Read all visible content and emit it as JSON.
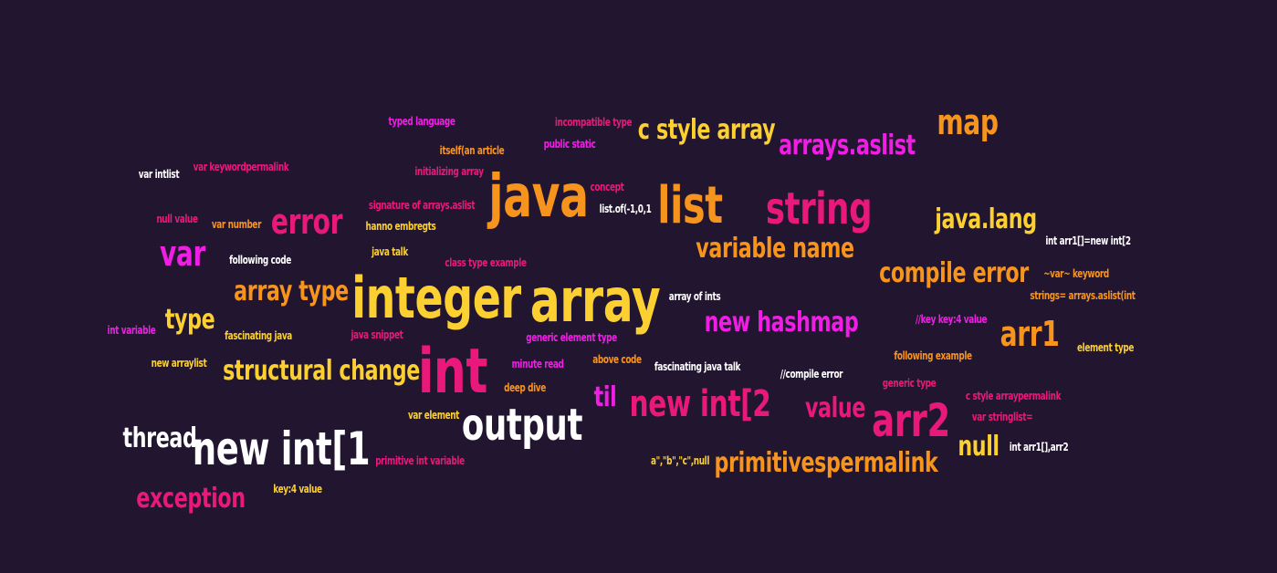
{
  "palette": {
    "background": "#221530",
    "orange": "#f7941d",
    "yellow": "#fbd030",
    "pink": "#e8197a",
    "magenta": "#f01ee4",
    "white": "#ffffff"
  },
  "words": [
    {
      "text": "java",
      "color": "orange"
    },
    {
      "text": "array",
      "color": "yellow"
    },
    {
      "text": "integer",
      "color": "yellow"
    },
    {
      "text": "int",
      "color": "pink"
    },
    {
      "text": "list",
      "color": "orange"
    },
    {
      "text": "string",
      "color": "pink"
    },
    {
      "text": "new int[1",
      "color": "white"
    },
    {
      "text": "output",
      "color": "white"
    },
    {
      "text": "new int[2",
      "color": "pink"
    },
    {
      "text": "arr2",
      "color": "pink"
    },
    {
      "text": "map",
      "color": "orange"
    },
    {
      "text": "var",
      "color": "magenta"
    },
    {
      "text": "error",
      "color": "pink"
    },
    {
      "text": "arr1",
      "color": "orange"
    },
    {
      "text": "structural change",
      "color": "yellow"
    },
    {
      "text": "array type",
      "color": "orange"
    },
    {
      "text": "type",
      "color": "yellow"
    },
    {
      "text": "thread",
      "color": "white"
    },
    {
      "text": "exception",
      "color": "pink"
    },
    {
      "text": "c style array",
      "color": "yellow"
    },
    {
      "text": "arrays.aslist",
      "color": "magenta"
    },
    {
      "text": "variable name",
      "color": "orange"
    },
    {
      "text": "java.lang",
      "color": "yellow"
    },
    {
      "text": "compile error",
      "color": "orange"
    },
    {
      "text": "new hashmap",
      "color": "magenta"
    },
    {
      "text": "value",
      "color": "pink"
    },
    {
      "text": "til",
      "color": "magenta"
    },
    {
      "text": "null",
      "color": "yellow"
    },
    {
      "text": "primitivespermalink",
      "color": "orange"
    },
    {
      "text": "typed language",
      "color": "magenta"
    },
    {
      "text": "incompatible type",
      "color": "pink"
    },
    {
      "text": "itself(an article",
      "color": "orange"
    },
    {
      "text": "public static",
      "color": "magenta"
    },
    {
      "text": "var intlist",
      "color": "white"
    },
    {
      "text": "var keywordpermalink",
      "color": "pink"
    },
    {
      "text": "initializing array",
      "color": "pink"
    },
    {
      "text": "concept",
      "color": "pink"
    },
    {
      "text": "signature of arrays.aslist",
      "color": "pink"
    },
    {
      "text": "list.of(-1,0,1",
      "color": "white"
    },
    {
      "text": "null value",
      "color": "pink"
    },
    {
      "text": "var number",
      "color": "orange"
    },
    {
      "text": "hanno embregts",
      "color": "yellow"
    },
    {
      "text": "java talk",
      "color": "yellow"
    },
    {
      "text": "following code",
      "color": "white"
    },
    {
      "text": "class type example",
      "color": "pink"
    },
    {
      "text": "int arr1[]=new int[2",
      "color": "white"
    },
    {
      "text": "~var~ keyword",
      "color": "orange"
    },
    {
      "text": "strings= arrays.aslist(int",
      "color": "orange"
    },
    {
      "text": "array of ints",
      "color": "white"
    },
    {
      "text": "int variable",
      "color": "magenta"
    },
    {
      "text": "fascinating java",
      "color": "yellow"
    },
    {
      "text": "java snippet",
      "color": "pink"
    },
    {
      "text": "generic element type",
      "color": "magenta"
    },
    {
      "text": "//key key:4 value",
      "color": "magenta"
    },
    {
      "text": "element type",
      "color": "yellow"
    },
    {
      "text": "following example",
      "color": "orange"
    },
    {
      "text": "new arraylist",
      "color": "yellow"
    },
    {
      "text": "minute read",
      "color": "magenta"
    },
    {
      "text": "above code",
      "color": "orange"
    },
    {
      "text": "fascinating java talk",
      "color": "white"
    },
    {
      "text": "//compile error",
      "color": "white"
    },
    {
      "text": "generic type",
      "color": "pink"
    },
    {
      "text": "deep dive",
      "color": "orange"
    },
    {
      "text": "c style arraypermalink",
      "color": "pink"
    },
    {
      "text": "var element",
      "color": "yellow"
    },
    {
      "text": "var stringlist=",
      "color": "pink"
    },
    {
      "text": "int arr1[],arr2",
      "color": "white"
    },
    {
      "text": "primitive int variable",
      "color": "pink"
    },
    {
      "text": "a\",\"b\",\"c\",null",
      "color": "yellow"
    },
    {
      "text": "key:4 value",
      "color": "yellow"
    }
  ]
}
